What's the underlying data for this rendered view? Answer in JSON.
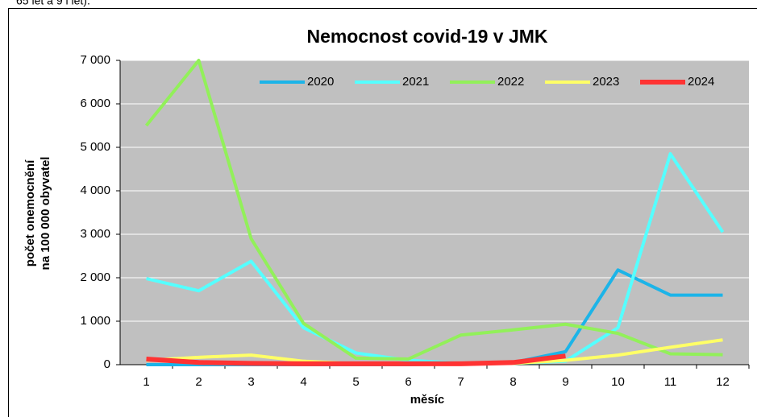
{
  "header": {
    "text": "65 let a 9 i let)."
  },
  "chart_data": {
    "type": "line",
    "title": "Nemocnost covid-19 v JMK",
    "xlabel": "měsíc",
    "ylabel": [
      "počet onemocnění",
      "na 100 000 obyvatel"
    ],
    "categories": [
      "1",
      "2",
      "3",
      "4",
      "5",
      "6",
      "7",
      "8",
      "9",
      "10",
      "11",
      "12"
    ],
    "ylim": [
      0,
      7000
    ],
    "yticks": [
      0,
      {
        "value": 1000,
        "label": "1 000"
      },
      {
        "value": 2000,
        "label": "2 000"
      },
      {
        "value": 3000,
        "label": "3 000"
      },
      {
        "value": 4000,
        "label": "4 000"
      },
      {
        "value": 5000,
        "label": "5 000"
      },
      {
        "value": 6000,
        "label": "6 000"
      },
      {
        "value": 7000,
        "label": "7 000"
      }
    ],
    "grid": true,
    "legend": "top",
    "series": [
      {
        "name": "2020",
        "color": "#1cb4e8",
        "values": [
          0,
          0,
          0,
          0,
          0,
          0,
          20,
          50,
          300,
          2180,
          1600,
          1600
        ]
      },
      {
        "name": "2021",
        "color": "#55ffff",
        "values": [
          1980,
          1700,
          2380,
          850,
          270,
          100,
          30,
          30,
          80,
          850,
          4850,
          3050
        ]
      },
      {
        "name": "2022",
        "color": "#92f05a",
        "values": [
          5500,
          7000,
          2900,
          950,
          150,
          130,
          680,
          800,
          930,
          720,
          250,
          230
        ]
      },
      {
        "name": "2023",
        "color": "#ffff66",
        "values": [
          100,
          170,
          220,
          80,
          20,
          10,
          20,
          30,
          100,
          220,
          400,
          570
        ]
      },
      {
        "name": "2024",
        "color": "#ff3333",
        "values": [
          130,
          50,
          30,
          20,
          20,
          20,
          20,
          50,
          200,
          null,
          null,
          null
        ]
      }
    ]
  }
}
